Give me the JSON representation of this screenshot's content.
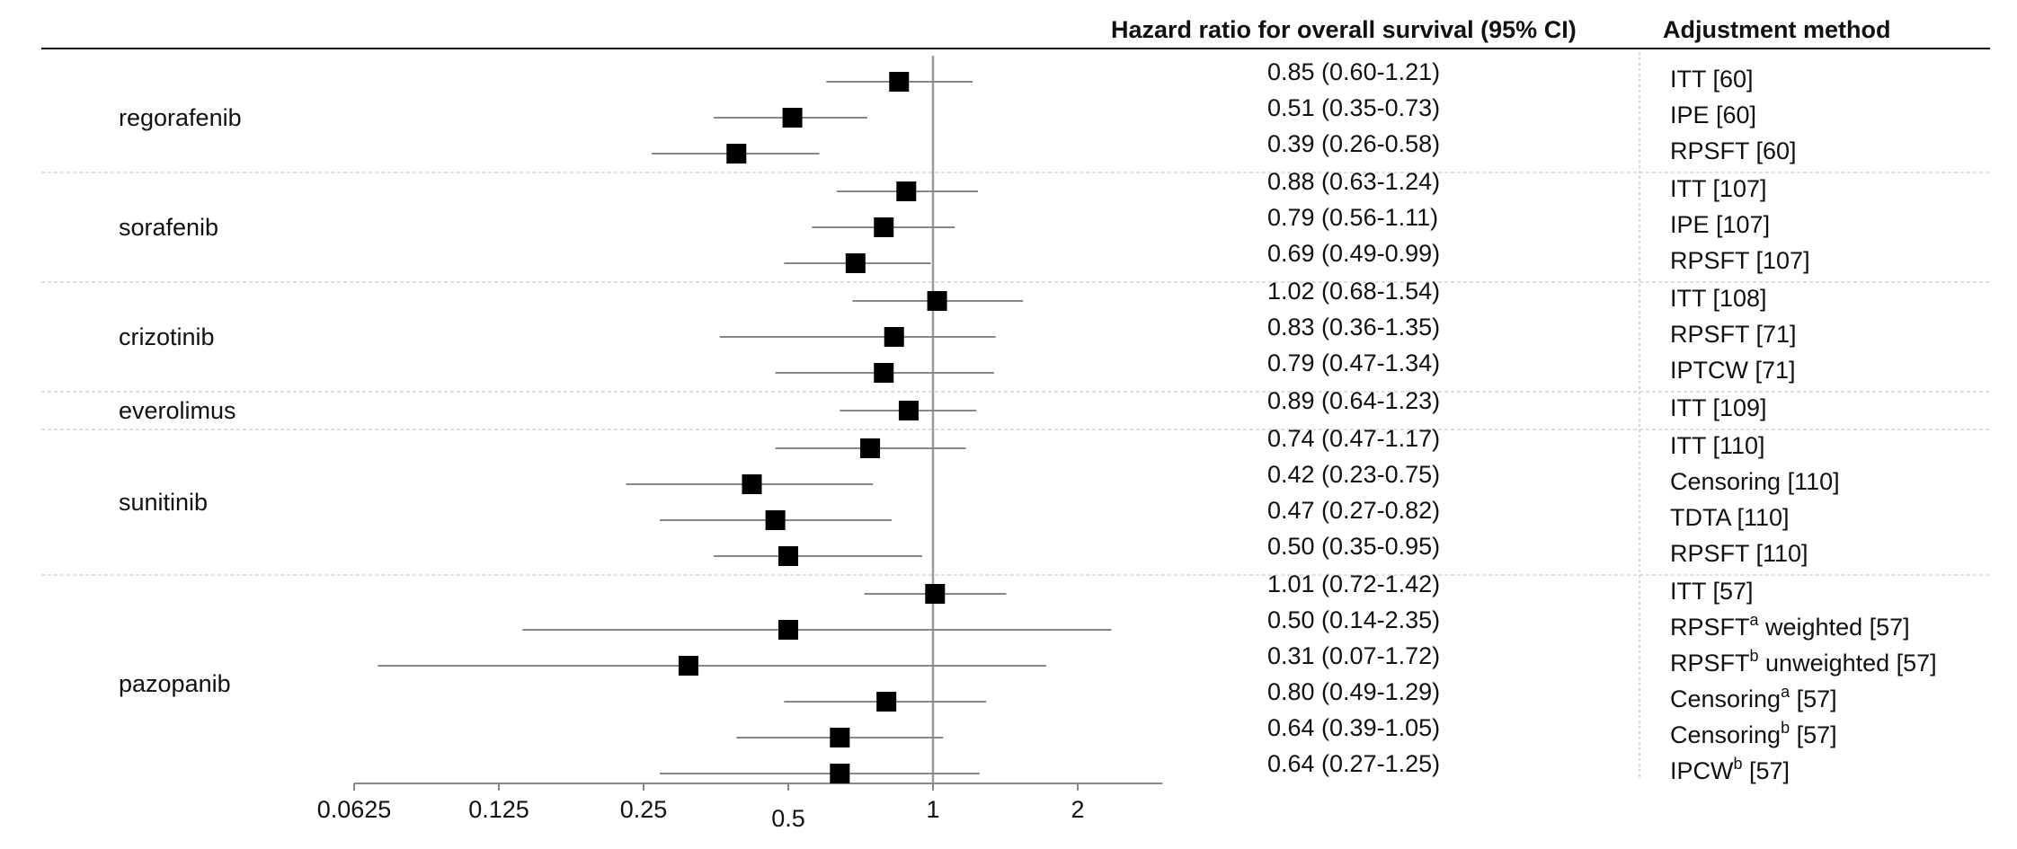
{
  "chart_data": {
    "type": "forest",
    "x_scale": "log2",
    "xlim": [
      0.0625,
      3.0
    ],
    "x_ticks": [
      {
        "value": 0.0625,
        "label": "0.0625"
      },
      {
        "value": 0.125,
        "label": "0.125"
      },
      {
        "value": 0.25,
        "label": "0.25"
      },
      {
        "value": 0.5,
        "label": "0.5"
      },
      {
        "value": 1,
        "label": "1"
      },
      {
        "value": 2,
        "label": "2"
      }
    ],
    "reference_line": 1,
    "grid": false,
    "headers": {
      "hr": "Hazard ratio for overall survival (95% CI)",
      "method": "Adjustment method"
    },
    "groups": [
      {
        "name": "regorafenib",
        "rows": [
          {
            "hr": 0.85,
            "lo": 0.6,
            "hi": 1.21,
            "hr_text": "0.85 (0.60-1.21)",
            "method": "ITT [60]",
            "sup": ""
          },
          {
            "hr": 0.51,
            "lo": 0.35,
            "hi": 0.73,
            "hr_text": "0.51 (0.35-0.73)",
            "method": "IPE [60]",
            "sup": ""
          },
          {
            "hr": 0.39,
            "lo": 0.26,
            "hi": 0.58,
            "hr_text": "0.39 (0.26-0.58)",
            "method": "RPSFT [60]",
            "sup": ""
          }
        ]
      },
      {
        "name": "sorafenib",
        "rows": [
          {
            "hr": 0.88,
            "lo": 0.63,
            "hi": 1.24,
            "hr_text": "0.88 (0.63-1.24)",
            "method": "ITT [107]",
            "sup": ""
          },
          {
            "hr": 0.79,
            "lo": 0.56,
            "hi": 1.11,
            "hr_text": "0.79 (0.56-1.11)",
            "method": "IPE [107]",
            "sup": ""
          },
          {
            "hr": 0.69,
            "lo": 0.49,
            "hi": 0.99,
            "hr_text": "0.69 (0.49-0.99)",
            "method": "RPSFT [107]",
            "sup": ""
          }
        ]
      },
      {
        "name": "crizotinib",
        "rows": [
          {
            "hr": 1.02,
            "lo": 0.68,
            "hi": 1.54,
            "hr_text": "1.02 (0.68-1.54)",
            "method": "ITT [108]",
            "sup": ""
          },
          {
            "hr": 0.83,
            "lo": 0.36,
            "hi": 1.35,
            "hr_text": "0.83 (0.36-1.35)",
            "method": "RPSFT [71]",
            "sup": ""
          },
          {
            "hr": 0.79,
            "lo": 0.47,
            "hi": 1.34,
            "hr_text": "0.79 (0.47-1.34)",
            "method": "IPTCW [71]",
            "sup": ""
          }
        ]
      },
      {
        "name": "everolimus",
        "rows": [
          {
            "hr": 0.89,
            "lo": 0.64,
            "hi": 1.23,
            "hr_text": "0.89 (0.64-1.23)",
            "method": "ITT [109]",
            "sup": ""
          }
        ]
      },
      {
        "name": "sunitinib",
        "rows": [
          {
            "hr": 0.74,
            "lo": 0.47,
            "hi": 1.17,
            "hr_text": "0.74 (0.47-1.17)",
            "method": "ITT [110]",
            "sup": ""
          },
          {
            "hr": 0.42,
            "lo": 0.23,
            "hi": 0.75,
            "hr_text": "0.42 (0.23-0.75)",
            "method": "Censoring [110]",
            "sup": ""
          },
          {
            "hr": 0.47,
            "lo": 0.27,
            "hi": 0.82,
            "hr_text": "0.47 (0.27-0.82)",
            "method": "TDTA [110]",
            "sup": ""
          },
          {
            "hr": 0.5,
            "lo": 0.35,
            "hi": 0.95,
            "hr_text": "0.50 (0.35-0.95)",
            "method": "RPSFT [110]",
            "sup": ""
          }
        ]
      },
      {
        "name": "pazopanib",
        "rows": [
          {
            "hr": 1.01,
            "lo": 0.72,
            "hi": 1.42,
            "hr_text": "1.01 (0.72-1.42)",
            "method": "ITT [57]",
            "sup": ""
          },
          {
            "hr": 0.5,
            "lo": 0.14,
            "hi": 2.35,
            "hr_text": "0.50 (0.14-2.35)",
            "method": "RPSFT",
            "sup": "a",
            "method_rest": " weighted [57]"
          },
          {
            "hr": 0.31,
            "lo": 0.07,
            "hi": 1.72,
            "hr_text": "0.31 (0.07-1.72)",
            "method": "RPSFT",
            "sup": "b",
            "method_rest": " unweighted [57]"
          },
          {
            "hr": 0.8,
            "lo": 0.49,
            "hi": 1.29,
            "hr_text": "0.80 (0.49-1.29)",
            "method": "Censoring",
            "sup": "a",
            "method_rest": " [57]"
          },
          {
            "hr": 0.64,
            "lo": 0.39,
            "hi": 1.05,
            "hr_text": "0.64 (0.39-1.05)",
            "method": "Censoring",
            "sup": "b",
            "method_rest": " [57]"
          },
          {
            "hr": 0.64,
            "lo": 0.27,
            "hi": 1.25,
            "hr_text": "0.64 (0.27-1.25)",
            "method": "IPCW",
            "sup": "b",
            "method_rest": " [57]"
          }
        ]
      }
    ]
  }
}
